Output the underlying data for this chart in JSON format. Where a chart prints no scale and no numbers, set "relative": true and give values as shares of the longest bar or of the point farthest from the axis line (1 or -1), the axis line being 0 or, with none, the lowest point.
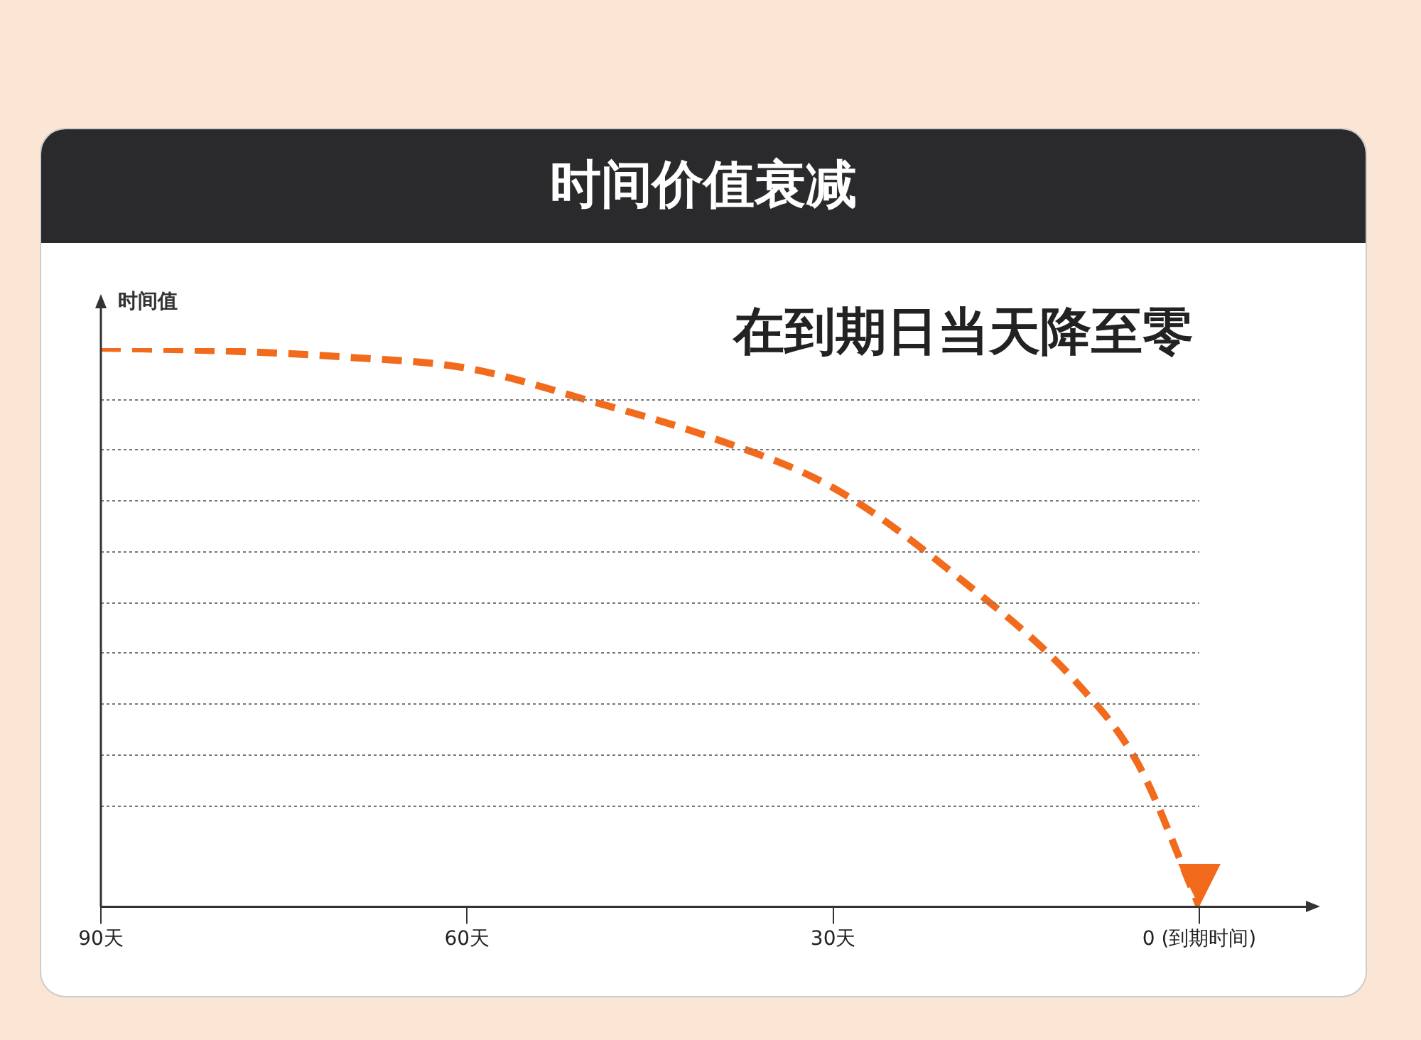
{
  "chart_data": {
    "type": "line",
    "title": "时间价值衰减",
    "ylabel": "时间值",
    "annotations": [
      "在到期日当天降至零"
    ],
    "relative": true,
    "grid": "y",
    "marker": "none",
    "line_style": "dashed",
    "x": [
      90,
      80,
      70,
      60,
      50,
      40,
      30,
      20,
      10,
      5,
      0
    ],
    "xlim": [
      90,
      0
    ],
    "xticks": [
      {
        "value": 90,
        "label": "90天"
      },
      {
        "value": 60,
        "label": "60天"
      },
      {
        "value": 30,
        "label": "30天"
      },
      {
        "value": 0,
        "label": "0 (到期时间)"
      }
    ],
    "series": [
      {
        "color": "#f26b1d",
        "values": [
          1,
          0.995,
          0.984,
          0.964,
          0.906,
          0.84,
          0.75,
          0.594,
          0.4,
          0.255,
          0
        ]
      }
    ]
  }
}
